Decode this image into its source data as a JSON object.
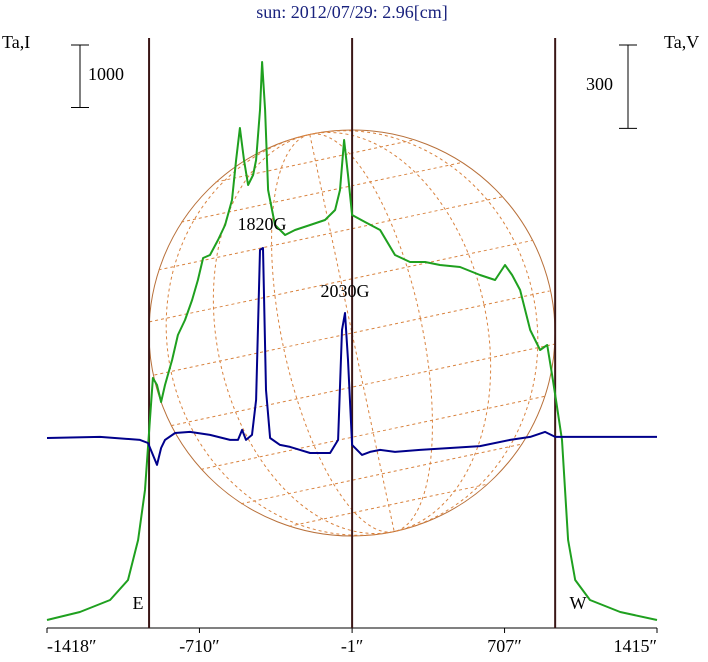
{
  "chart_data": {
    "type": "line",
    "title": "sun: 2012/07/29: 2.96[cm]",
    "y_label": "Ta,I",
    "y2_label": "Ta,V",
    "xlim": [
      -1418,
      1415
    ],
    "xticks": [
      {
        "value": -1418,
        "label": "-1418″"
      },
      {
        "value": -710,
        "label": "-710″"
      },
      {
        "value": -1,
        "label": "-1″"
      },
      {
        "value": 707,
        "label": "707″"
      },
      {
        "value": 1415,
        "label": "1415″"
      }
    ],
    "ylim": [
      0,
      9440
    ],
    "y2lim": [
      -684,
      1440
    ],
    "vlines": [
      -944,
      -1,
      942
    ],
    "scale_bars": [
      {
        "value": 1000,
        "axis": "y"
      },
      {
        "value": 300,
        "axis": "y2"
      }
    ],
    "annotations": [
      "1820G",
      "2030G",
      "E",
      "W"
    ],
    "series": [
      {
        "color": "#1fa01f",
        "x": [
          -1418,
          -1265,
          -1125,
          -1042,
          -995,
          -963,
          -940,
          -926,
          -907,
          -888,
          -870,
          -837,
          -810,
          -777,
          -744,
          -717,
          -693,
          -661,
          -624,
          -591,
          -559,
          -540,
          -522,
          -503,
          -484,
          -461,
          -447,
          -429,
          -419,
          -405,
          -391,
          -359,
          -312,
          -266,
          -196,
          -127,
          -80,
          -57,
          -38,
          -20,
          -1,
          59,
          129,
          198,
          268,
          338,
          407,
          500,
          593,
          663,
          709,
          742,
          779,
          826,
          872,
          905,
          928,
          946,
          974,
          1002,
          1035,
          1104,
          1244,
          1415
        ],
        "values": [
          128,
          256,
          448,
          768,
          1408,
          2208,
          3328,
          4000,
          3888,
          3616,
          3888,
          4288,
          4688,
          4928,
          5248,
          5568,
          5920,
          5968,
          6208,
          6448,
          6848,
          7488,
          8000,
          7488,
          7088,
          7248,
          7488,
          8288,
          9056,
          8288,
          7008,
          6448,
          6288,
          6368,
          6448,
          6528,
          6688,
          7008,
          7808,
          7248,
          6608,
          6496,
          6368,
          5968,
          5856,
          5856,
          5808,
          5776,
          5648,
          5568,
          5808,
          5648,
          5408,
          4768,
          4448,
          4528,
          4048,
          3648,
          3008,
          1408,
          768,
          448,
          256,
          128
        ]
      },
      {
        "color": "#00008b",
        "axis": "y2",
        "x": [
          -1418,
          -1172,
          -986,
          -949,
          -926,
          -907,
          -888,
          -870,
          -823,
          -754,
          -661,
          -568,
          -531,
          -512,
          -494,
          -466,
          -447,
          -429,
          -415,
          -401,
          -382,
          -336,
          -289,
          -243,
          -196,
          -103,
          -66,
          -48,
          -34,
          -20,
          -1,
          45,
          82,
          129,
          198,
          315,
          454,
          593,
          733,
          826,
          895,
          942,
          1151,
          1415
        ],
        "values": [
          0,
          4,
          -7,
          -18,
          -61,
          -97,
          -36,
          -7,
          18,
          22,
          11,
          -7,
          -7,
          29,
          -7,
          11,
          137,
          677,
          684,
          173,
          0,
          -25,
          -32,
          -43,
          -54,
          -54,
          -7,
          389,
          450,
          281,
          -25,
          -61,
          -50,
          -43,
          -50,
          -43,
          -36,
          -29,
          -7,
          4,
          22,
          4,
          4,
          4
        ]
      }
    ]
  }
}
